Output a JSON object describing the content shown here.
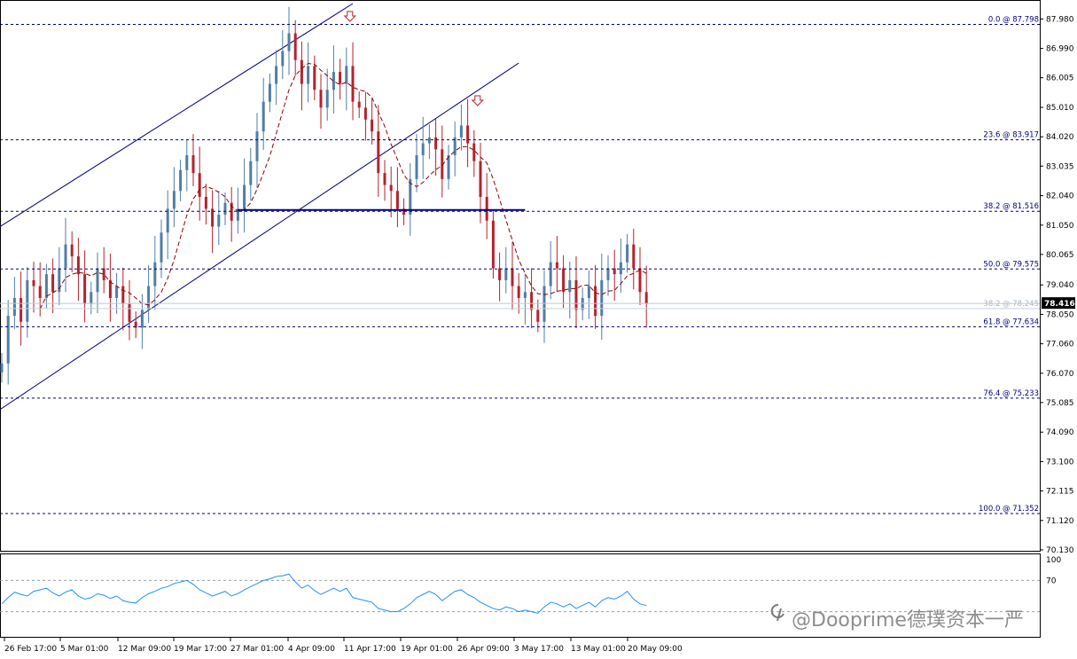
{
  "chart_data": [
    {
      "type": "candlestick",
      "symbol": "",
      "ylim": [
        70.13,
        88.5
      ],
      "y_ticks": [
        "87.980",
        "86.990",
        "86.005",
        "85.010",
        "84.020",
        "83.035",
        "82.040",
        "81.050",
        "80.065",
        "79.040",
        "78.050",
        "77.060",
        "76.070",
        "75.085",
        "74.090",
        "73.100",
        "72.115",
        "71.120",
        "70.130"
      ],
      "x_ticks": [
        "26 Feb 17:00",
        "5 Mar 01:00",
        "12 Mar 09:00",
        "19 Mar 17:00",
        "27 Mar 01:00",
        "4 Apr 09:00",
        "11 Apr 17:00",
        "19 Apr 01:00",
        "26 Apr 09:00",
        "3 May 17:00",
        "13 May 01:00",
        "20 May 09:00"
      ],
      "current_price": "78.416",
      "fibonacci_levels": [
        {
          "label": "0.0 @ 87.798",
          "value": 87.798,
          "faint": false
        },
        {
          "label": "23.6 @ 83.917",
          "value": 83.917,
          "faint": false
        },
        {
          "label": "38.2 @ 81.516",
          "value": 81.516,
          "faint": false
        },
        {
          "label": "50.0 @ 79.575",
          "value": 79.575,
          "faint": false
        },
        {
          "label": "38.2 @ 78.245",
          "value": 78.245,
          "faint": true
        },
        {
          "label": "61.8 @ 77.634",
          "value": 77.634,
          "faint": false
        },
        {
          "label": "76.4 @ 75.233",
          "value": 75.233,
          "faint": false
        },
        {
          "label": "100.0 @ 71.352",
          "value": 71.352,
          "faint": false
        }
      ],
      "support_line": {
        "value": 81.56,
        "from_bar": 37,
        "to_bar": 82
      },
      "channel": [
        {
          "from": [
            0,
            81.0
          ],
          "to": [
            55,
            88.5
          ]
        },
        {
          "from": [
            0,
            74.85
          ],
          "to": [
            81,
            86.5
          ]
        }
      ],
      "arrows_at_bars": [
        54,
        74
      ],
      "closes": [
        76.4,
        78.0,
        78.6,
        77.8,
        79.2,
        79.0,
        78.6,
        79.4,
        78.8,
        79.6,
        80.4,
        80.0,
        79.4,
        78.4,
        78.8,
        79.6,
        79.2,
        78.6,
        79.0,
        78.4,
        77.8,
        77.6,
        78.2,
        79.0,
        79.8,
        80.8,
        81.6,
        82.2,
        82.9,
        83.4,
        82.8,
        82.0,
        81.6,
        81.0,
        81.4,
        81.8,
        81.2,
        81.6,
        82.4,
        83.2,
        84.2,
        85.2,
        85.8,
        86.4,
        86.9,
        87.5,
        86.6,
        85.8,
        86.4,
        85.6,
        85.0,
        85.6,
        86.2,
        85.8,
        86.4,
        85.2,
        85.0,
        84.6,
        84.2,
        82.8,
        82.4,
        82.2,
        81.6,
        81.4,
        82.6,
        83.4,
        83.8,
        84.0,
        83.6,
        82.6,
        83.4,
        84.0,
        84.4,
        83.8,
        83.2,
        82.0,
        81.2,
        79.6,
        79.2,
        79.6,
        79.0,
        78.6,
        78.8,
        78.2,
        77.8,
        79.0,
        79.8,
        79.6,
        78.8,
        79.2,
        78.2,
        78.6,
        79.0,
        78.0,
        79.2,
        79.6,
        79.4,
        79.8,
        80.4,
        79.6,
        78.8,
        78.4
      ],
      "rsi": {
        "ylim": [
          0,
          100
        ],
        "levels": [
          70,
          30
        ],
        "top_label": "100",
        "level_label": "70",
        "values": [
          40,
          48,
          55,
          52,
          50,
          56,
          58,
          60,
          54,
          50,
          55,
          58,
          50,
          46,
          48,
          53,
          51,
          47,
          50,
          44,
          42,
          41,
          48,
          53,
          56,
          60,
          62,
          66,
          68,
          70,
          65,
          58,
          54,
          50,
          53,
          56,
          50,
          53,
          58,
          62,
          66,
          70,
          72,
          75,
          76,
          78,
          68,
          60,
          64,
          57,
          52,
          56,
          60,
          56,
          60,
          48,
          46,
          44,
          42,
          34,
          32,
          30,
          30,
          34,
          40,
          48,
          52,
          56,
          52,
          44,
          50,
          56,
          58,
          52,
          48,
          42,
          38,
          34,
          32,
          36,
          34,
          30,
          32,
          30,
          28,
          36,
          42,
          40,
          36,
          40,
          34,
          38,
          42,
          36,
          44,
          48,
          46,
          50,
          56,
          46,
          40,
          38
        ]
      }
    }
  ],
  "watermark": "@Dooprime德璞资本一严"
}
